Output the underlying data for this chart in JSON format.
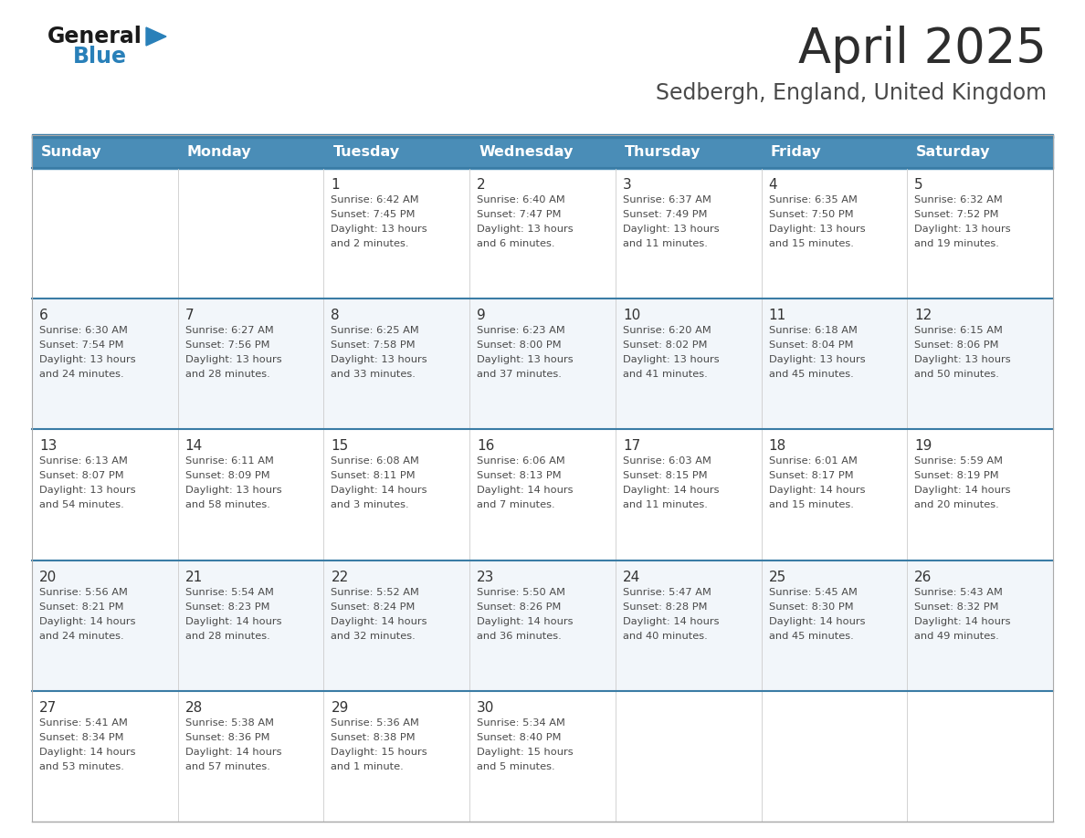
{
  "title": "April 2025",
  "subtitle": "Sedbergh, England, United Kingdom",
  "days_of_week": [
    "Sunday",
    "Monday",
    "Tuesday",
    "Wednesday",
    "Thursday",
    "Friday",
    "Saturday"
  ],
  "header_bg": "#4A8DB7",
  "header_text": "#FFFFFF",
  "row_bg_odd": "#FFFFFF",
  "row_bg_even": "#F2F6FA",
  "separator_color": "#3A7CA5",
  "cell_text_color": "#4a4a4a",
  "day_num_color": "#333333",
  "title_color": "#2d2d2d",
  "subtitle_color": "#4a4a4a",
  "calendar_data": [
    [
      {
        "day": null,
        "sunrise": null,
        "sunset": null,
        "daylight_h": null,
        "daylight_m": null
      },
      {
        "day": null,
        "sunrise": null,
        "sunset": null,
        "daylight_h": null,
        "daylight_m": null
      },
      {
        "day": 1,
        "sunrise": "6:42 AM",
        "sunset": "7:45 PM",
        "daylight_h": "13 hours",
        "daylight_m": "and 2 minutes."
      },
      {
        "day": 2,
        "sunrise": "6:40 AM",
        "sunset": "7:47 PM",
        "daylight_h": "13 hours",
        "daylight_m": "and 6 minutes."
      },
      {
        "day": 3,
        "sunrise": "6:37 AM",
        "sunset": "7:49 PM",
        "daylight_h": "13 hours",
        "daylight_m": "and 11 minutes."
      },
      {
        "day": 4,
        "sunrise": "6:35 AM",
        "sunset": "7:50 PM",
        "daylight_h": "13 hours",
        "daylight_m": "and 15 minutes."
      },
      {
        "day": 5,
        "sunrise": "6:32 AM",
        "sunset": "7:52 PM",
        "daylight_h": "13 hours",
        "daylight_m": "and 19 minutes."
      }
    ],
    [
      {
        "day": 6,
        "sunrise": "6:30 AM",
        "sunset": "7:54 PM",
        "daylight_h": "13 hours",
        "daylight_m": "and 24 minutes."
      },
      {
        "day": 7,
        "sunrise": "6:27 AM",
        "sunset": "7:56 PM",
        "daylight_h": "13 hours",
        "daylight_m": "and 28 minutes."
      },
      {
        "day": 8,
        "sunrise": "6:25 AM",
        "sunset": "7:58 PM",
        "daylight_h": "13 hours",
        "daylight_m": "and 33 minutes."
      },
      {
        "day": 9,
        "sunrise": "6:23 AM",
        "sunset": "8:00 PM",
        "daylight_h": "13 hours",
        "daylight_m": "and 37 minutes."
      },
      {
        "day": 10,
        "sunrise": "6:20 AM",
        "sunset": "8:02 PM",
        "daylight_h": "13 hours",
        "daylight_m": "and 41 minutes."
      },
      {
        "day": 11,
        "sunrise": "6:18 AM",
        "sunset": "8:04 PM",
        "daylight_h": "13 hours",
        "daylight_m": "and 45 minutes."
      },
      {
        "day": 12,
        "sunrise": "6:15 AM",
        "sunset": "8:06 PM",
        "daylight_h": "13 hours",
        "daylight_m": "and 50 minutes."
      }
    ],
    [
      {
        "day": 13,
        "sunrise": "6:13 AM",
        "sunset": "8:07 PM",
        "daylight_h": "13 hours",
        "daylight_m": "and 54 minutes."
      },
      {
        "day": 14,
        "sunrise": "6:11 AM",
        "sunset": "8:09 PM",
        "daylight_h": "13 hours",
        "daylight_m": "and 58 minutes."
      },
      {
        "day": 15,
        "sunrise": "6:08 AM",
        "sunset": "8:11 PM",
        "daylight_h": "14 hours",
        "daylight_m": "and 3 minutes."
      },
      {
        "day": 16,
        "sunrise": "6:06 AM",
        "sunset": "8:13 PM",
        "daylight_h": "14 hours",
        "daylight_m": "and 7 minutes."
      },
      {
        "day": 17,
        "sunrise": "6:03 AM",
        "sunset": "8:15 PM",
        "daylight_h": "14 hours",
        "daylight_m": "and 11 minutes."
      },
      {
        "day": 18,
        "sunrise": "6:01 AM",
        "sunset": "8:17 PM",
        "daylight_h": "14 hours",
        "daylight_m": "and 15 minutes."
      },
      {
        "day": 19,
        "sunrise": "5:59 AM",
        "sunset": "8:19 PM",
        "daylight_h": "14 hours",
        "daylight_m": "and 20 minutes."
      }
    ],
    [
      {
        "day": 20,
        "sunrise": "5:56 AM",
        "sunset": "8:21 PM",
        "daylight_h": "14 hours",
        "daylight_m": "and 24 minutes."
      },
      {
        "day": 21,
        "sunrise": "5:54 AM",
        "sunset": "8:23 PM",
        "daylight_h": "14 hours",
        "daylight_m": "and 28 minutes."
      },
      {
        "day": 22,
        "sunrise": "5:52 AM",
        "sunset": "8:24 PM",
        "daylight_h": "14 hours",
        "daylight_m": "and 32 minutes."
      },
      {
        "day": 23,
        "sunrise": "5:50 AM",
        "sunset": "8:26 PM",
        "daylight_h": "14 hours",
        "daylight_m": "and 36 minutes."
      },
      {
        "day": 24,
        "sunrise": "5:47 AM",
        "sunset": "8:28 PM",
        "daylight_h": "14 hours",
        "daylight_m": "and 40 minutes."
      },
      {
        "day": 25,
        "sunrise": "5:45 AM",
        "sunset": "8:30 PM",
        "daylight_h": "14 hours",
        "daylight_m": "and 45 minutes."
      },
      {
        "day": 26,
        "sunrise": "5:43 AM",
        "sunset": "8:32 PM",
        "daylight_h": "14 hours",
        "daylight_m": "and 49 minutes."
      }
    ],
    [
      {
        "day": 27,
        "sunrise": "5:41 AM",
        "sunset": "8:34 PM",
        "daylight_h": "14 hours",
        "daylight_m": "and 53 minutes."
      },
      {
        "day": 28,
        "sunrise": "5:38 AM",
        "sunset": "8:36 PM",
        "daylight_h": "14 hours",
        "daylight_m": "and 57 minutes."
      },
      {
        "day": 29,
        "sunrise": "5:36 AM",
        "sunset": "8:38 PM",
        "daylight_h": "15 hours",
        "daylight_m": "and 1 minute."
      },
      {
        "day": 30,
        "sunrise": "5:34 AM",
        "sunset": "8:40 PM",
        "daylight_h": "15 hours",
        "daylight_m": "and 5 minutes."
      },
      {
        "day": null,
        "sunrise": null,
        "sunset": null,
        "daylight_h": null,
        "daylight_m": null
      },
      {
        "day": null,
        "sunrise": null,
        "sunset": null,
        "daylight_h": null,
        "daylight_m": null
      },
      {
        "day": null,
        "sunrise": null,
        "sunset": null,
        "daylight_h": null,
        "daylight_m": null
      }
    ]
  ]
}
